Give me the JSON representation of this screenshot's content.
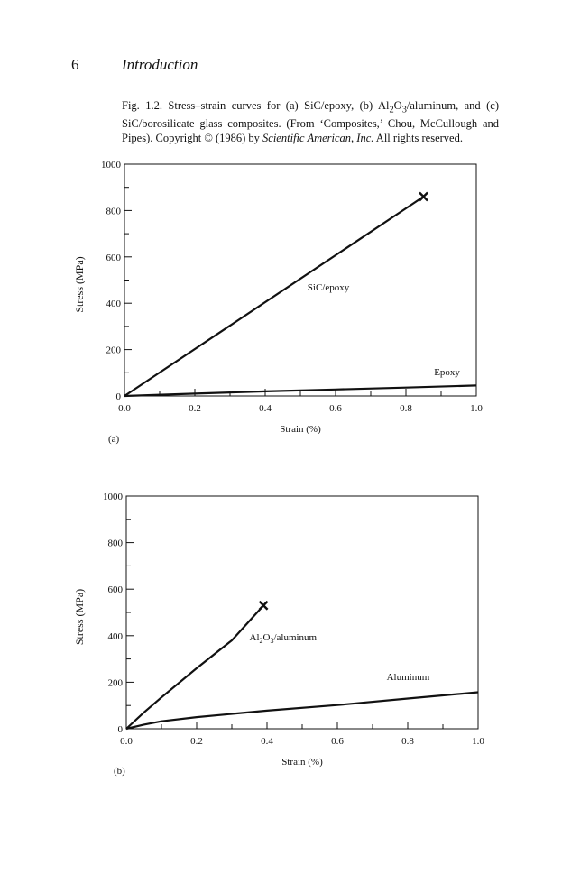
{
  "page": {
    "number": "6",
    "running_head": "Introduction"
  },
  "caption": {
    "part1": "Fig. 1.2. Stress–strain curves for (a) SiC/epoxy, (b) Al",
    "sub1": "2",
    "part2": "O",
    "sub2": "3",
    "part3": "/aluminum, and (c) SiC/borosilicate glass composites. (From ‘Composites,’ Chou, McCullough and Pipes). Copyright © (1986) by ",
    "publisher": "Scientific American, Inc.",
    "part4": " All rights reserved."
  },
  "colors": {
    "ink": "#111111",
    "background": "#ffffff"
  },
  "chart_data": [
    {
      "type": "line",
      "panel_label": "(a)",
      "xlabel": "Strain (%)",
      "ylabel": "Stress (MPa)",
      "xlim": [
        0,
        1.0
      ],
      "ylim": [
        0,
        1000
      ],
      "x_ticks": [
        "0.0",
        "0.2",
        "0.4",
        "0.6",
        "0.8",
        "1.0"
      ],
      "y_ticks": [
        "0",
        "200",
        "400",
        "600",
        "800",
        "1000"
      ],
      "grid": false,
      "series": [
        {
          "name": "SiC/epoxy",
          "x": [
            0,
            0.85
          ],
          "y": [
            0,
            860
          ],
          "failure_marker": true
        },
        {
          "name": "Epoxy",
          "x": [
            0,
            0.2,
            0.4,
            0.6,
            0.8,
            1.0
          ],
          "y": [
            0,
            10,
            20,
            28,
            36,
            45
          ],
          "failure_marker": false
        }
      ]
    },
    {
      "type": "line",
      "panel_label": "(b)",
      "xlabel": "Strain (%)",
      "ylabel": "Stress (MPa)",
      "xlim": [
        0,
        1.0
      ],
      "ylim": [
        0,
        1000
      ],
      "x_ticks": [
        "0.0",
        "0.2",
        "0.4",
        "0.6",
        "0.8",
        "1.0"
      ],
      "y_ticks": [
        "0",
        "200",
        "400",
        "600",
        "800",
        "1000"
      ],
      "grid": false,
      "series": [
        {
          "name": "Al2O3/aluminum",
          "x": [
            0,
            0.05,
            0.1,
            0.2,
            0.3,
            0.39
          ],
          "y": [
            0,
            70,
            135,
            260,
            380,
            530
          ],
          "failure_marker": true
        },
        {
          "name": "Aluminum",
          "x": [
            0,
            0.05,
            0.1,
            0.2,
            0.4,
            0.6,
            0.8,
            1.0
          ],
          "y": [
            0,
            18,
            32,
            50,
            78,
            102,
            130,
            157
          ],
          "failure_marker": false
        }
      ]
    }
  ]
}
